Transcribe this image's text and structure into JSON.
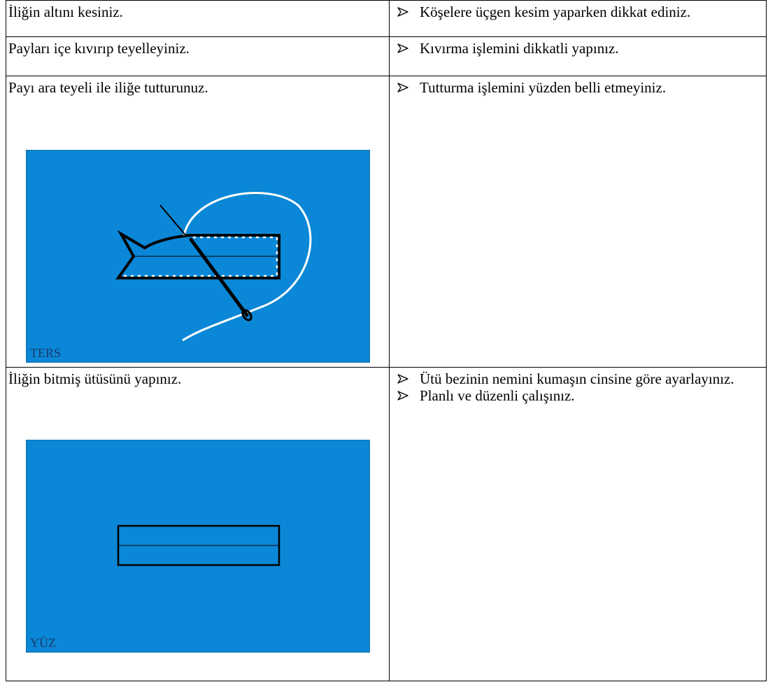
{
  "rows": [
    {
      "step": "İliğin altını kesiniz.",
      "tips": [
        "Köşelere üçgen kesim yaparken dikkat ediniz."
      ]
    },
    {
      "step": "Payları içe kıvırıp teyelleyiniz.",
      "tips": [
        "Kıvırma işlemini dikkatli yapınız."
      ]
    },
    {
      "step": "Payı ara teyeli ile iliğe tutturunuz.",
      "image_label": "TERS",
      "tips": [
        "Tutturma işlemini yüzden belli etmeyiniz."
      ]
    },
    {
      "step": "İliğin bitmiş ütüsünü yapınız.",
      "image_label": "YÜZ",
      "tips": [
        "Ütü bezinin nemini kumaşın cinsine göre ayarlayınız.",
        "Planlı ve düzenli çalışınız."
      ]
    }
  ]
}
